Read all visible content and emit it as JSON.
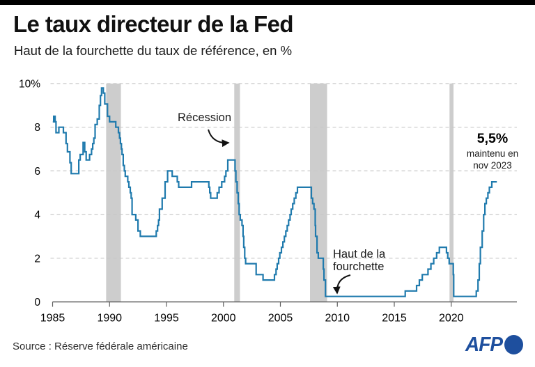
{
  "header": {
    "title": "Le taux directeur de la Fed",
    "subtitle": "Haut de la fourchette du taux de référence, en %"
  },
  "annotations": {
    "recession": {
      "label": "Récession"
    },
    "range_top": {
      "line1": "Haut de la",
      "line2": "fourchette"
    },
    "latest": {
      "value": "5,5%",
      "line1": "maintenu en",
      "line2": "nov 2023"
    }
  },
  "footer": {
    "source": "Source : Réserve fédérale américaine",
    "logo_text": "AFP"
  },
  "chart_data": {
    "type": "line",
    "step": true,
    "title": "Le taux directeur de la Fed",
    "subtitle": "Haut de la fourchette du taux de référence, en %",
    "xlabel": "",
    "ylabel": "%",
    "x_range": [
      1985,
      2024.1
    ],
    "ylim": [
      0,
      10
    ],
    "grid": "horizontal dashed",
    "legend_position": "none",
    "x_ticks": [
      1985,
      1990,
      1995,
      2000,
      2005,
      2010,
      2015,
      2020
    ],
    "y_ticks": [
      {
        "value": 0,
        "label": "0"
      },
      {
        "value": 2,
        "label": "2"
      },
      {
        "value": 4,
        "label": "4"
      },
      {
        "value": 6,
        "label": "6"
      },
      {
        "value": 8,
        "label": "8"
      },
      {
        "value": 10,
        "label": "10%"
      }
    ],
    "recession_bands_years": [
      [
        1989.7,
        1991.0
      ],
      [
        2000.95,
        2001.45
      ],
      [
        2007.6,
        2009.1
      ],
      [
        2019.85,
        2020.2
      ]
    ],
    "series": [
      {
        "name": "Taux directeur de la Fed, haut de la fourchette (%)",
        "points": [
          [
            1985.02,
            8.25
          ],
          [
            1985.1,
            8.5
          ],
          [
            1985.22,
            8.25
          ],
          [
            1985.3,
            7.75
          ],
          [
            1985.55,
            8.0
          ],
          [
            1985.95,
            7.75
          ],
          [
            1986.18,
            7.25
          ],
          [
            1986.3,
            6.875
          ],
          [
            1986.52,
            6.375
          ],
          [
            1986.63,
            5.875
          ],
          [
            1987.3,
            6.5
          ],
          [
            1987.42,
            6.75
          ],
          [
            1987.68,
            7.3
          ],
          [
            1987.82,
            6.875
          ],
          [
            1987.95,
            6.5
          ],
          [
            1988.25,
            6.75
          ],
          [
            1988.42,
            7.0
          ],
          [
            1988.52,
            7.25
          ],
          [
            1988.62,
            7.5
          ],
          [
            1988.73,
            8.125
          ],
          [
            1988.92,
            8.375
          ],
          [
            1989.1,
            9.0
          ],
          [
            1989.2,
            9.45
          ],
          [
            1989.3,
            9.8
          ],
          [
            1989.45,
            9.5625
          ],
          [
            1989.58,
            9.0625
          ],
          [
            1989.82,
            8.5
          ],
          [
            1990.0,
            8.25
          ],
          [
            1990.55,
            8.0
          ],
          [
            1990.78,
            7.75
          ],
          [
            1990.88,
            7.5
          ],
          [
            1990.96,
            7.25
          ],
          [
            1991.04,
            7.0
          ],
          [
            1991.1,
            6.75
          ],
          [
            1991.2,
            6.25
          ],
          [
            1991.3,
            6.0
          ],
          [
            1991.38,
            5.75
          ],
          [
            1991.6,
            5.5
          ],
          [
            1991.7,
            5.25
          ],
          [
            1991.82,
            5.0
          ],
          [
            1991.9,
            4.75
          ],
          [
            1991.98,
            4.0
          ],
          [
            1992.3,
            3.75
          ],
          [
            1992.5,
            3.25
          ],
          [
            1992.7,
            3.0
          ],
          [
            1994.1,
            3.25
          ],
          [
            1994.22,
            3.5
          ],
          [
            1994.3,
            3.75
          ],
          [
            1994.38,
            4.25
          ],
          [
            1994.62,
            4.75
          ],
          [
            1994.88,
            5.5
          ],
          [
            1995.1,
            6.0
          ],
          [
            1995.5,
            5.75
          ],
          [
            1995.95,
            5.5
          ],
          [
            1996.07,
            5.25
          ],
          [
            1997.2,
            5.5
          ],
          [
            1998.72,
            5.25
          ],
          [
            1998.8,
            5.0
          ],
          [
            1998.88,
            4.75
          ],
          [
            1999.45,
            5.0
          ],
          [
            1999.62,
            5.25
          ],
          [
            1999.85,
            5.5
          ],
          [
            2000.1,
            5.75
          ],
          [
            2000.22,
            6.0
          ],
          [
            2000.38,
            6.5
          ],
          [
            2001.02,
            6.0
          ],
          [
            2001.09,
            5.5
          ],
          [
            2001.2,
            5.0
          ],
          [
            2001.3,
            4.5
          ],
          [
            2001.38,
            4.0
          ],
          [
            2001.48,
            3.75
          ],
          [
            2001.63,
            3.5
          ],
          [
            2001.72,
            3.0
          ],
          [
            2001.78,
            2.5
          ],
          [
            2001.87,
            2.0
          ],
          [
            2001.95,
            1.75
          ],
          [
            2002.87,
            1.25
          ],
          [
            2003.48,
            1.0
          ],
          [
            2004.48,
            1.25
          ],
          [
            2004.62,
            1.5
          ],
          [
            2004.72,
            1.75
          ],
          [
            2004.85,
            2.0
          ],
          [
            2004.95,
            2.25
          ],
          [
            2005.09,
            2.5
          ],
          [
            2005.22,
            2.75
          ],
          [
            2005.35,
            3.0
          ],
          [
            2005.48,
            3.25
          ],
          [
            2005.6,
            3.5
          ],
          [
            2005.72,
            3.75
          ],
          [
            2005.85,
            4.0
          ],
          [
            2005.95,
            4.25
          ],
          [
            2006.08,
            4.5
          ],
          [
            2006.22,
            4.75
          ],
          [
            2006.36,
            5.0
          ],
          [
            2006.5,
            5.25
          ],
          [
            2007.72,
            4.75
          ],
          [
            2007.83,
            4.5
          ],
          [
            2007.95,
            4.25
          ],
          [
            2008.06,
            3.5
          ],
          [
            2008.09,
            3.0
          ],
          [
            2008.22,
            2.25
          ],
          [
            2008.33,
            2.0
          ],
          [
            2008.77,
            1.5
          ],
          [
            2008.83,
            1.0
          ],
          [
            2008.96,
            0.25
          ],
          [
            2015.96,
            0.5
          ],
          [
            2016.96,
            0.75
          ],
          [
            2017.2,
            1.0
          ],
          [
            2017.46,
            1.25
          ],
          [
            2017.96,
            1.5
          ],
          [
            2018.22,
            1.75
          ],
          [
            2018.46,
            2.0
          ],
          [
            2018.72,
            2.25
          ],
          [
            2018.96,
            2.5
          ],
          [
            2019.58,
            2.25
          ],
          [
            2019.7,
            2.0
          ],
          [
            2019.82,
            1.75
          ],
          [
            2020.18,
            1.25
          ],
          [
            2020.22,
            0.25
          ],
          [
            2022.2,
            0.5
          ],
          [
            2022.35,
            1.0
          ],
          [
            2022.46,
            1.75
          ],
          [
            2022.56,
            2.5
          ],
          [
            2022.72,
            3.25
          ],
          [
            2022.85,
            4.0
          ],
          [
            2022.96,
            4.5
          ],
          [
            2023.08,
            4.75
          ],
          [
            2023.22,
            5.0
          ],
          [
            2023.35,
            5.25
          ],
          [
            2023.56,
            5.5
          ],
          [
            2024.0,
            5.5
          ]
        ]
      }
    ],
    "colors": {
      "line": "#1f7aad",
      "recession_band": "#cdcdcd",
      "grid": "#c8c8c8",
      "axis": "#5f5f5f",
      "tick_text": "#000000",
      "annotation_arrow": "#111111",
      "afp_blue": "#1e4f9e",
      "topbar": "#000000"
    }
  }
}
